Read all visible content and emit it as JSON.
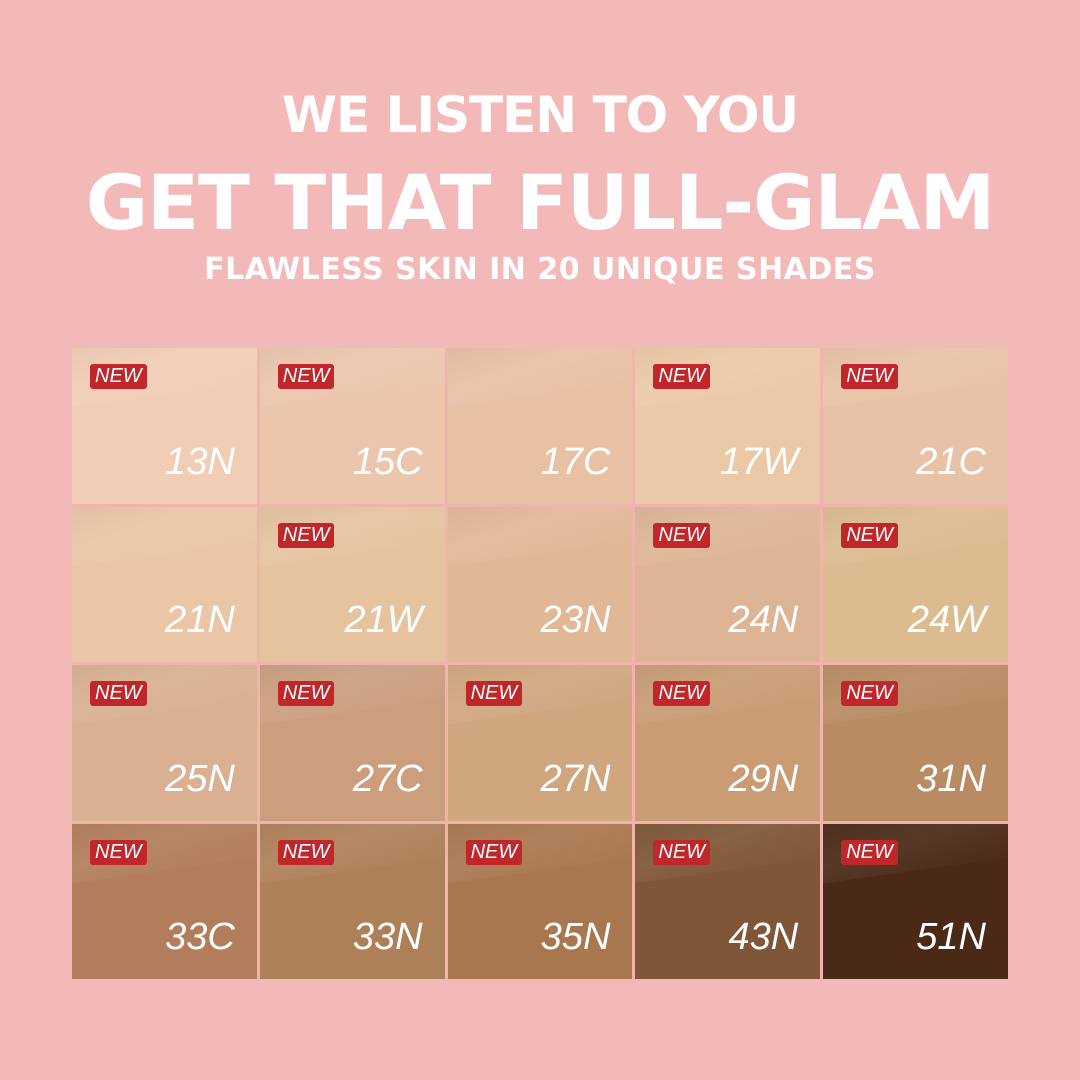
{
  "header": {
    "line1": "WE LISTEN TO YOU",
    "line2": "GET THAT FULL-GLAM",
    "line3": "FLAWLESS SKIN IN 20 UNIQUE SHADES"
  },
  "badge_label": "NEW",
  "shades": [
    {
      "name": "13N",
      "new": true,
      "color": "#f2cdb5"
    },
    {
      "name": "15C",
      "new": true,
      "color": "#ebc6ad"
    },
    {
      "name": "17C",
      "new": false,
      "color": "#e8c0a4"
    },
    {
      "name": "17W",
      "new": true,
      "color": "#ecc9a6"
    },
    {
      "name": "21C",
      "new": true,
      "color": "#e8c2a6"
    },
    {
      "name": "21N",
      "new": false,
      "color": "#eac6a6"
    },
    {
      "name": "21W",
      "new": true,
      "color": "#e5c39e"
    },
    {
      "name": "23N",
      "new": false,
      "color": "#e1b896"
    },
    {
      "name": "24N",
      "new": true,
      "color": "#ddb594"
    },
    {
      "name": "24W",
      "new": true,
      "color": "#dcbb90"
    },
    {
      "name": "25N",
      "new": true,
      "color": "#d9b091"
    },
    {
      "name": "27C",
      "new": true,
      "color": "#cc9e7e"
    },
    {
      "name": "27N",
      "new": true,
      "color": "#d0a67f"
    },
    {
      "name": "29N",
      "new": true,
      "color": "#c99c74"
    },
    {
      "name": "31N",
      "new": true,
      "color": "#b98b63"
    },
    {
      "name": "33C",
      "new": true,
      "color": "#b27d5a"
    },
    {
      "name": "33N",
      "new": true,
      "color": "#ae8058"
    },
    {
      "name": "35N",
      "new": true,
      "color": "#a9774f"
    },
    {
      "name": "43N",
      "new": true,
      "color": "#7f5637"
    },
    {
      "name": "51N",
      "new": true,
      "color": "#4a2a17"
    }
  ]
}
